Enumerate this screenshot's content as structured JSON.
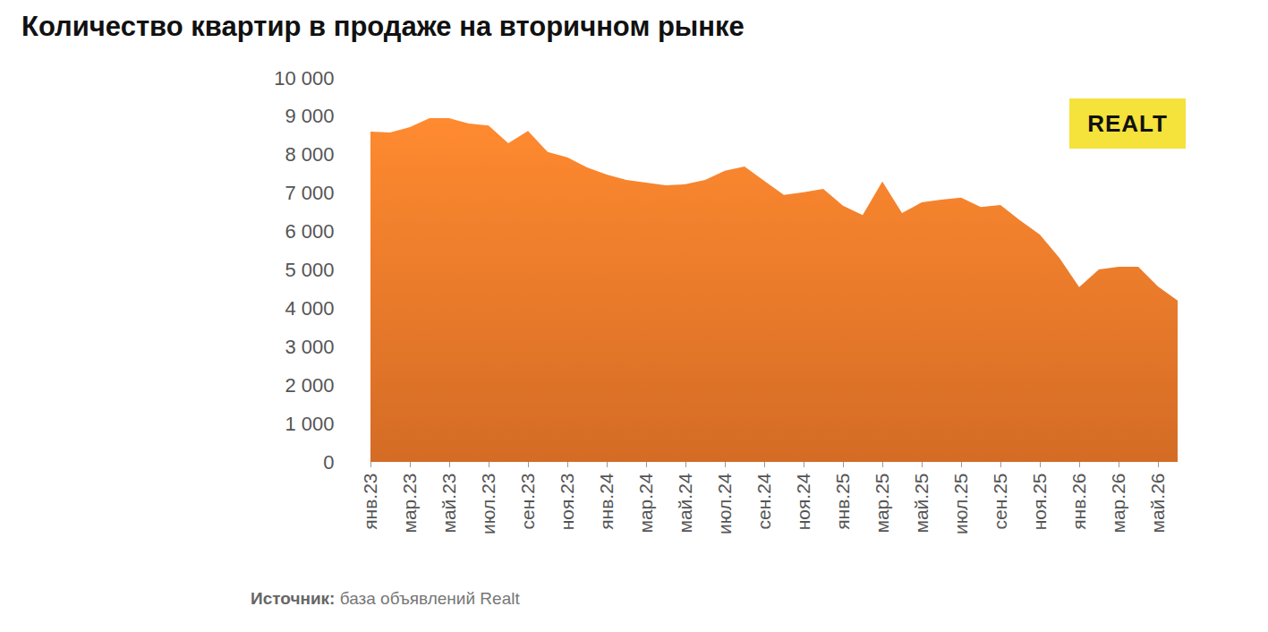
{
  "chart_data": {
    "type": "area",
    "title": "Количество квартир в продаже на вторичном рынке",
    "source": {
      "label": "Источник:",
      "text": "база объявлений Realt"
    },
    "logo": "REALT",
    "categories": [
      "янв.23",
      null,
      "мар.23",
      null,
      "май.23",
      null,
      "июл.23",
      null,
      "сен.23",
      null,
      "ноя.23",
      null,
      "янв.24",
      null,
      "мар.24",
      null,
      "май.24",
      null,
      "июл.24",
      null,
      "сен.24",
      null,
      "ноя.24",
      null,
      "янв.25",
      null,
      "мар.25",
      null,
      "май.25",
      null,
      "июл.25",
      null,
      "сен.25",
      null,
      "ноя.25",
      null,
      "янв.26",
      null,
      "мар.26",
      null,
      "май.26",
      null
    ],
    "values": [
      8600,
      8580,
      8720,
      8950,
      8950,
      8810,
      8760,
      8300,
      8620,
      8070,
      7930,
      7670,
      7480,
      7340,
      7270,
      7200,
      7230,
      7340,
      7580,
      7690,
      7320,
      6950,
      7020,
      7110,
      6670,
      6430,
      7300,
      6480,
      6760,
      6830,
      6880,
      6640,
      6690,
      6290,
      5920,
      5310,
      4550,
      5010,
      5080,
      5080,
      4570,
      4200
    ],
    "color": "#f07a2a",
    "ylim": [
      0,
      10000
    ],
    "yticks": [
      0,
      {
        "value": 1000,
        "label": "1 000"
      },
      {
        "value": 2000,
        "label": "2 000"
      },
      {
        "value": 3000,
        "label": "3 000"
      },
      {
        "value": 4000,
        "label": "4 000"
      },
      {
        "value": 5000,
        "label": "5 000"
      },
      {
        "value": 6000,
        "label": "6 000"
      },
      {
        "value": 7000,
        "label": "7 000"
      },
      {
        "value": 8000,
        "label": "8 000"
      },
      {
        "value": 9000,
        "label": "9 000"
      },
      {
        "value": 10000,
        "label": "10 000"
      }
    ],
    "grid": false
  }
}
